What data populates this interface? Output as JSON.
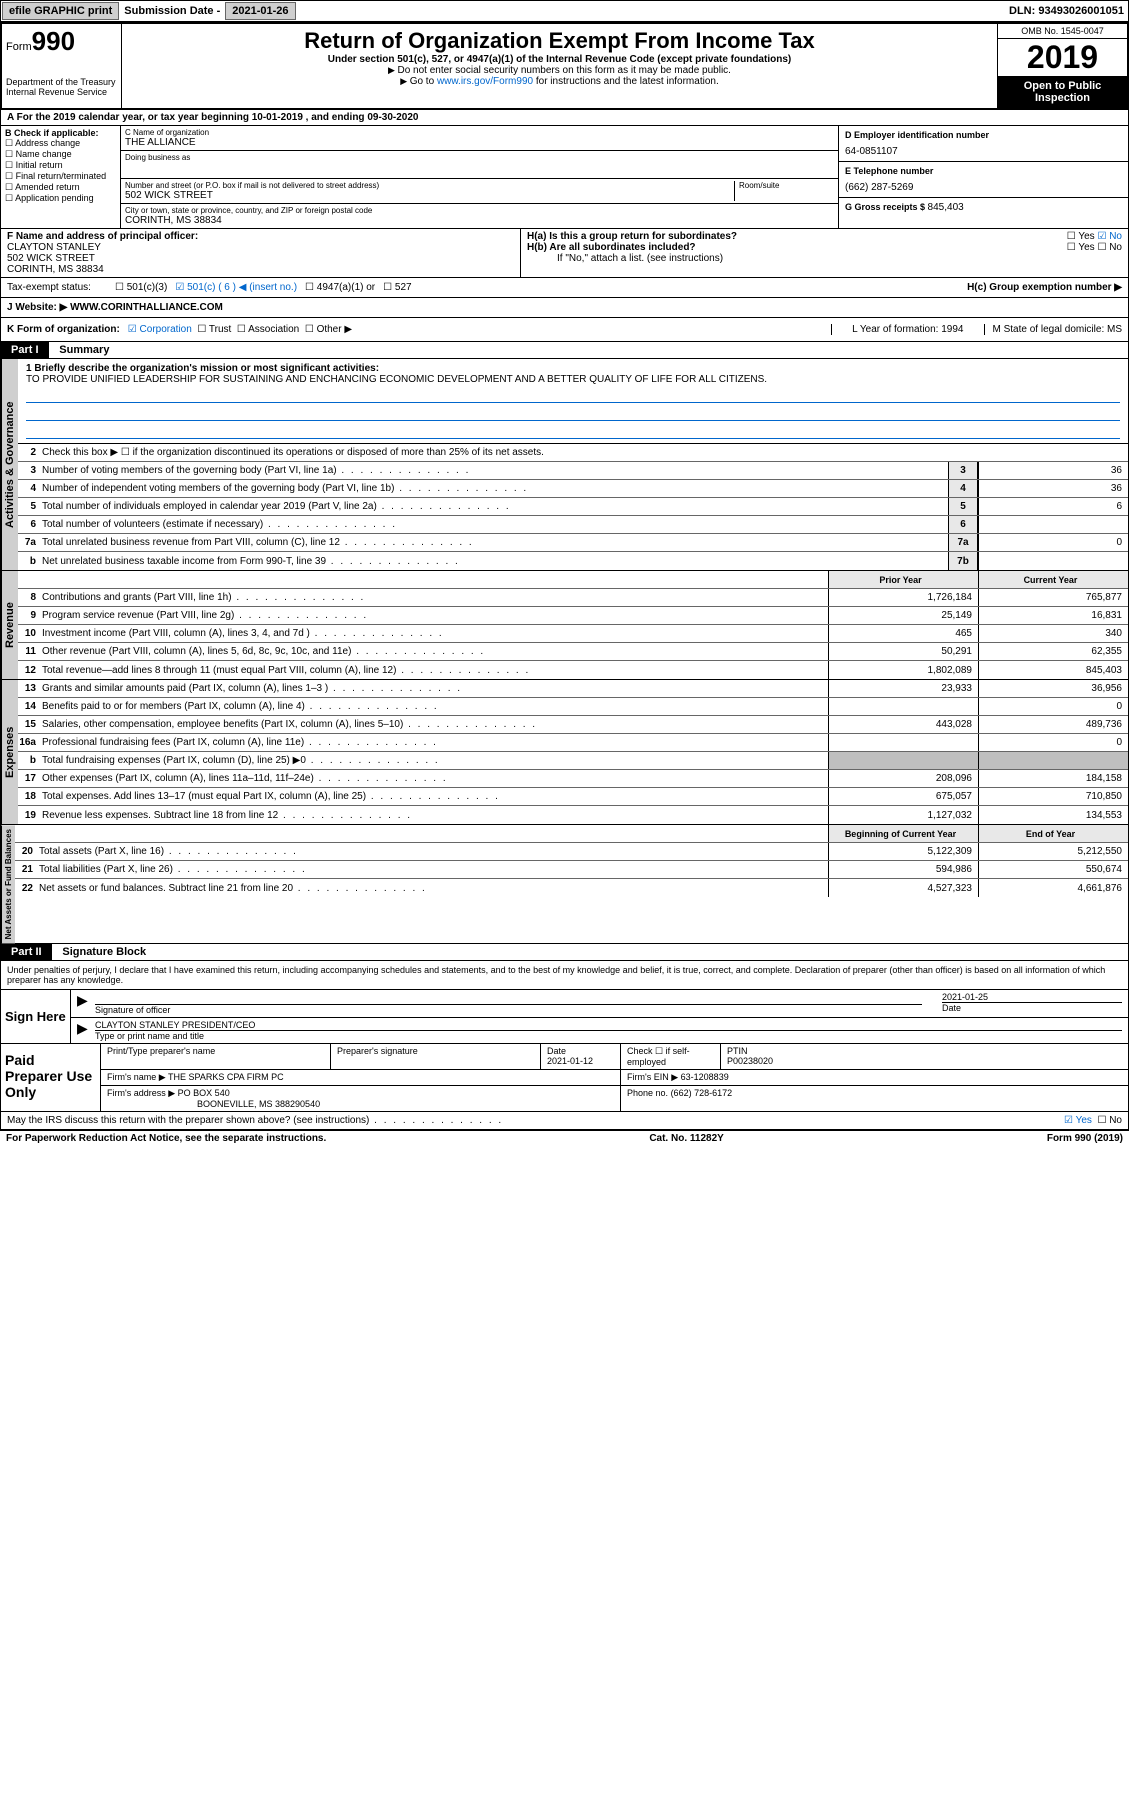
{
  "top": {
    "efile": "efile GRAPHIC print",
    "sub_label": "Submission Date - ",
    "sub_date": "2021-01-26",
    "dln_label": "DLN: ",
    "dln": "93493026001051"
  },
  "hdr": {
    "form": "Form",
    "num": "990",
    "dept": "Department of the Treasury\nInternal Revenue Service",
    "title": "Return of Organization Exempt From Income Tax",
    "sub": "Under section 501(c), 527, or 4947(a)(1) of the Internal Revenue Code (except private foundations)",
    "i1": "Do not enter social security numbers on this form as it may be made public.",
    "i2_pre": "Go to ",
    "i2_link": "www.irs.gov/Form990",
    "i2_post": " for instructions and the latest information.",
    "omb": "OMB No. 1545-0047",
    "year": "2019",
    "otp": "Open to Public Inspection"
  },
  "rowA": "A For the 2019 calendar year, or tax year beginning 10-01-2019   , and ending 09-30-2020",
  "B": {
    "label": "B Check if applicable:",
    "items": [
      "Address change",
      "Name change",
      "Initial return",
      "Final return/terminated",
      "Amended return",
      "Application pending"
    ]
  },
  "C": {
    "name_label": "C Name of organization",
    "name": "THE ALLIANCE",
    "dba_label": "Doing business as",
    "dba": "",
    "addr_label": "Number and street (or P.O. box if mail is not delivered to street address)",
    "room_label": "Room/suite",
    "addr": "502 WICK STREET",
    "city_label": "City or town, state or province, country, and ZIP or foreign postal code",
    "city": "CORINTH, MS  38834"
  },
  "D": {
    "label": "D Employer identification number",
    "val": "64-0851107"
  },
  "E": {
    "label": "E Telephone number",
    "val": "(662) 287-5269"
  },
  "G": {
    "label": "G Gross receipts $ ",
    "val": "845,403"
  },
  "F": {
    "label": "F  Name and address of principal officer:",
    "name": "CLAYTON STANLEY",
    "addr": "502 WICK STREET",
    "city": "CORINTH, MS  38834"
  },
  "H": {
    "a": "H(a)  Is this a group return for subordinates?",
    "b": "H(b)  Are all subordinates included?",
    "bnote": "If \"No,\" attach a list. (see instructions)",
    "c": "H(c)  Group exemption number ▶",
    "yes": "Yes",
    "no": "No"
  },
  "I": {
    "label": "Tax-exempt status:",
    "o1": "501(c)(3)",
    "o2": "501(c) ( 6 ) ◀ (insert no.)",
    "o3": "4947(a)(1) or",
    "o4": "527"
  },
  "J": {
    "label": "J   Website: ▶",
    "val": " WWW.CORINTHALLIANCE.COM"
  },
  "K": {
    "label": "K Form of organization:",
    "o1": "Corporation",
    "o2": "Trust",
    "o3": "Association",
    "o4": "Other ▶",
    "L": "L Year of formation: 1994",
    "M": "M State of legal domicile: MS"
  },
  "part1": {
    "hdr": "Part I",
    "title": "Summary",
    "l1_label": "1  Briefly describe the organization's mission or most significant activities:",
    "l1_val": "TO PROVIDE UNIFIED LEADERSHIP FOR SUSTAINING AND ENCHANCING ECONOMIC DEVELOPMENT AND A BETTER QUALITY OF LIFE FOR ALL CITIZENS.",
    "l2": "Check this box ▶ ☐  if the organization discontinued its operations or disposed of more than 25% of its net assets.",
    "gov": [
      {
        "n": "3",
        "t": "Number of voting members of the governing body (Part VI, line 1a)",
        "b": "3",
        "v": "36"
      },
      {
        "n": "4",
        "t": "Number of independent voting members of the governing body (Part VI, line 1b)",
        "b": "4",
        "v": "36"
      },
      {
        "n": "5",
        "t": "Total number of individuals employed in calendar year 2019 (Part V, line 2a)",
        "b": "5",
        "v": "6"
      },
      {
        "n": "6",
        "t": "Total number of volunteers (estimate if necessary)",
        "b": "6",
        "v": ""
      },
      {
        "n": "7a",
        "t": "Total unrelated business revenue from Part VIII, column (C), line 12",
        "b": "7a",
        "v": "0"
      },
      {
        "n": "b",
        "t": "Net unrelated business taxable income from Form 990-T, line 39",
        "b": "7b",
        "v": ""
      }
    ],
    "py": "Prior Year",
    "cy": "Current Year",
    "rev": [
      {
        "n": "8",
        "t": "Contributions and grants (Part VIII, line 1h)",
        "p": "1,726,184",
        "c": "765,877"
      },
      {
        "n": "9",
        "t": "Program service revenue (Part VIII, line 2g)",
        "p": "25,149",
        "c": "16,831"
      },
      {
        "n": "10",
        "t": "Investment income (Part VIII, column (A), lines 3, 4, and 7d )",
        "p": "465",
        "c": "340"
      },
      {
        "n": "11",
        "t": "Other revenue (Part VIII, column (A), lines 5, 6d, 8c, 9c, 10c, and 11e)",
        "p": "50,291",
        "c": "62,355"
      },
      {
        "n": "12",
        "t": "Total revenue—add lines 8 through 11 (must equal Part VIII, column (A), line 12)",
        "p": "1,802,089",
        "c": "845,403"
      }
    ],
    "exp": [
      {
        "n": "13",
        "t": "Grants and similar amounts paid (Part IX, column (A), lines 1–3 )",
        "p": "23,933",
        "c": "36,956"
      },
      {
        "n": "14",
        "t": "Benefits paid to or for members (Part IX, column (A), line 4)",
        "p": "",
        "c": "0"
      },
      {
        "n": "15",
        "t": "Salaries, other compensation, employee benefits (Part IX, column (A), lines 5–10)",
        "p": "443,028",
        "c": "489,736"
      },
      {
        "n": "16a",
        "t": "Professional fundraising fees (Part IX, column (A), line 11e)",
        "p": "",
        "c": "0"
      },
      {
        "n": "b",
        "t": "Total fundraising expenses (Part IX, column (D), line 25) ▶0",
        "p": "shade",
        "c": "shade"
      },
      {
        "n": "17",
        "t": "Other expenses (Part IX, column (A), lines 11a–11d, 11f–24e)",
        "p": "208,096",
        "c": "184,158"
      },
      {
        "n": "18",
        "t": "Total expenses. Add lines 13–17 (must equal Part IX, column (A), line 25)",
        "p": "675,057",
        "c": "710,850"
      },
      {
        "n": "19",
        "t": "Revenue less expenses. Subtract line 18 from line 12",
        "p": "1,127,032",
        "c": "134,553"
      }
    ],
    "by": "Beginning of Current Year",
    "ey": "End of Year",
    "net": [
      {
        "n": "20",
        "t": "Total assets (Part X, line 16)",
        "p": "5,122,309",
        "c": "5,212,550"
      },
      {
        "n": "21",
        "t": "Total liabilities (Part X, line 26)",
        "p": "594,986",
        "c": "550,674"
      },
      {
        "n": "22",
        "t": "Net assets or fund balances. Subtract line 21 from line 20",
        "p": "4,527,323",
        "c": "4,661,876"
      }
    ],
    "vtabs": {
      "gov": "Activities & Governance",
      "rev": "Revenue",
      "exp": "Expenses",
      "net": "Net Assets or Fund Balances"
    }
  },
  "part2": {
    "hdr": "Part II",
    "title": "Signature Block",
    "decl": "Under penalties of perjury, I declare that I have examined this return, including accompanying schedules and statements, and to the best of my knowledge and belief, it is true, correct, and complete. Declaration of preparer (other than officer) is based on all information of which preparer has any knowledge."
  },
  "sign": {
    "here": "Sign Here",
    "so_label": "Signature of officer",
    "date_label": "Date",
    "date": "2021-01-25",
    "name": "CLAYTON STANLEY  PRESIDENT/CEO",
    "name_label": "Type or print name and title"
  },
  "prep": {
    "here": "Paid Preparer Use Only",
    "h1": "Print/Type preparer's name",
    "h2": "Preparer's signature",
    "h3": "Date",
    "date": "2021-01-12",
    "h4": "Check ☐ if self-employed",
    "h5": "PTIN",
    "ptin": "P00238020",
    "firm_label": "Firm's name    ▶",
    "firm": "THE SPARKS CPA FIRM PC",
    "ein_label": "Firm's EIN ▶",
    "ein": "63-1208839",
    "addr_label": "Firm's address ▶",
    "addr1": "PO BOX 540",
    "addr2": "BOONEVILLE, MS  388290540",
    "phone_label": "Phone no.",
    "phone": "(662) 728-6172"
  },
  "discuss": "May the IRS discuss this return with the preparer shown above? (see instructions)",
  "footer": {
    "l": "For Paperwork Reduction Act Notice, see the separate instructions.",
    "m": "Cat. No. 11282Y",
    "r": "Form 990 (2019)"
  }
}
